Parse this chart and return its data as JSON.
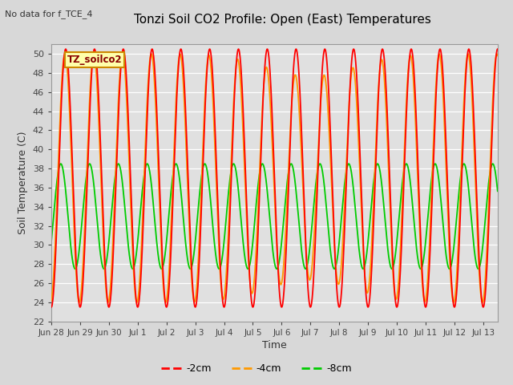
{
  "title": "Tonzi Soil CO2 Profile: Open (East) Temperatures",
  "subtitle": "No data for f_TCE_4",
  "xlabel": "Time",
  "ylabel": "Soil Temperature (C)",
  "ylim": [
    22,
    51
  ],
  "yticks": [
    22,
    24,
    26,
    28,
    30,
    32,
    34,
    36,
    38,
    40,
    42,
    44,
    46,
    48,
    50
  ],
  "legend_label_box": "TZ_soilco2",
  "line_colors": {
    "m2cm": "#ff0000",
    "m4cm": "#ff9900",
    "m8cm": "#00cc00"
  },
  "legend_entries": [
    "-2cm",
    "-4cm",
    "-8cm"
  ],
  "bg_color": "#d8d8d8",
  "plot_bg_color": "#e0e0e0",
  "n_days": 15.5,
  "points_per_day": 96,
  "m2cm_mean": 37.0,
  "m2cm_amp": 13.5,
  "m4cm_mean": 37.0,
  "m4cm_amp": 13.0,
  "m8cm_mean": 33.0,
  "m8cm_amp": 5.5,
  "phase_m2cm": -1.5707963,
  "phase_m4cm": -1.4,
  "phase_m8cm": -0.5,
  "tick_labels": [
    "Jun 28",
    "Jun 29",
    "Jun 30",
    "Jul 1",
    "Jul 2",
    "Jul 3",
    "Jul 4",
    "Jul 5",
    "Jul 6",
    "Jul 7",
    "Jul 8",
    "Jul 9",
    "Jul 10",
    "Jul 11",
    "Jul 12",
    "Jul 13"
  ]
}
